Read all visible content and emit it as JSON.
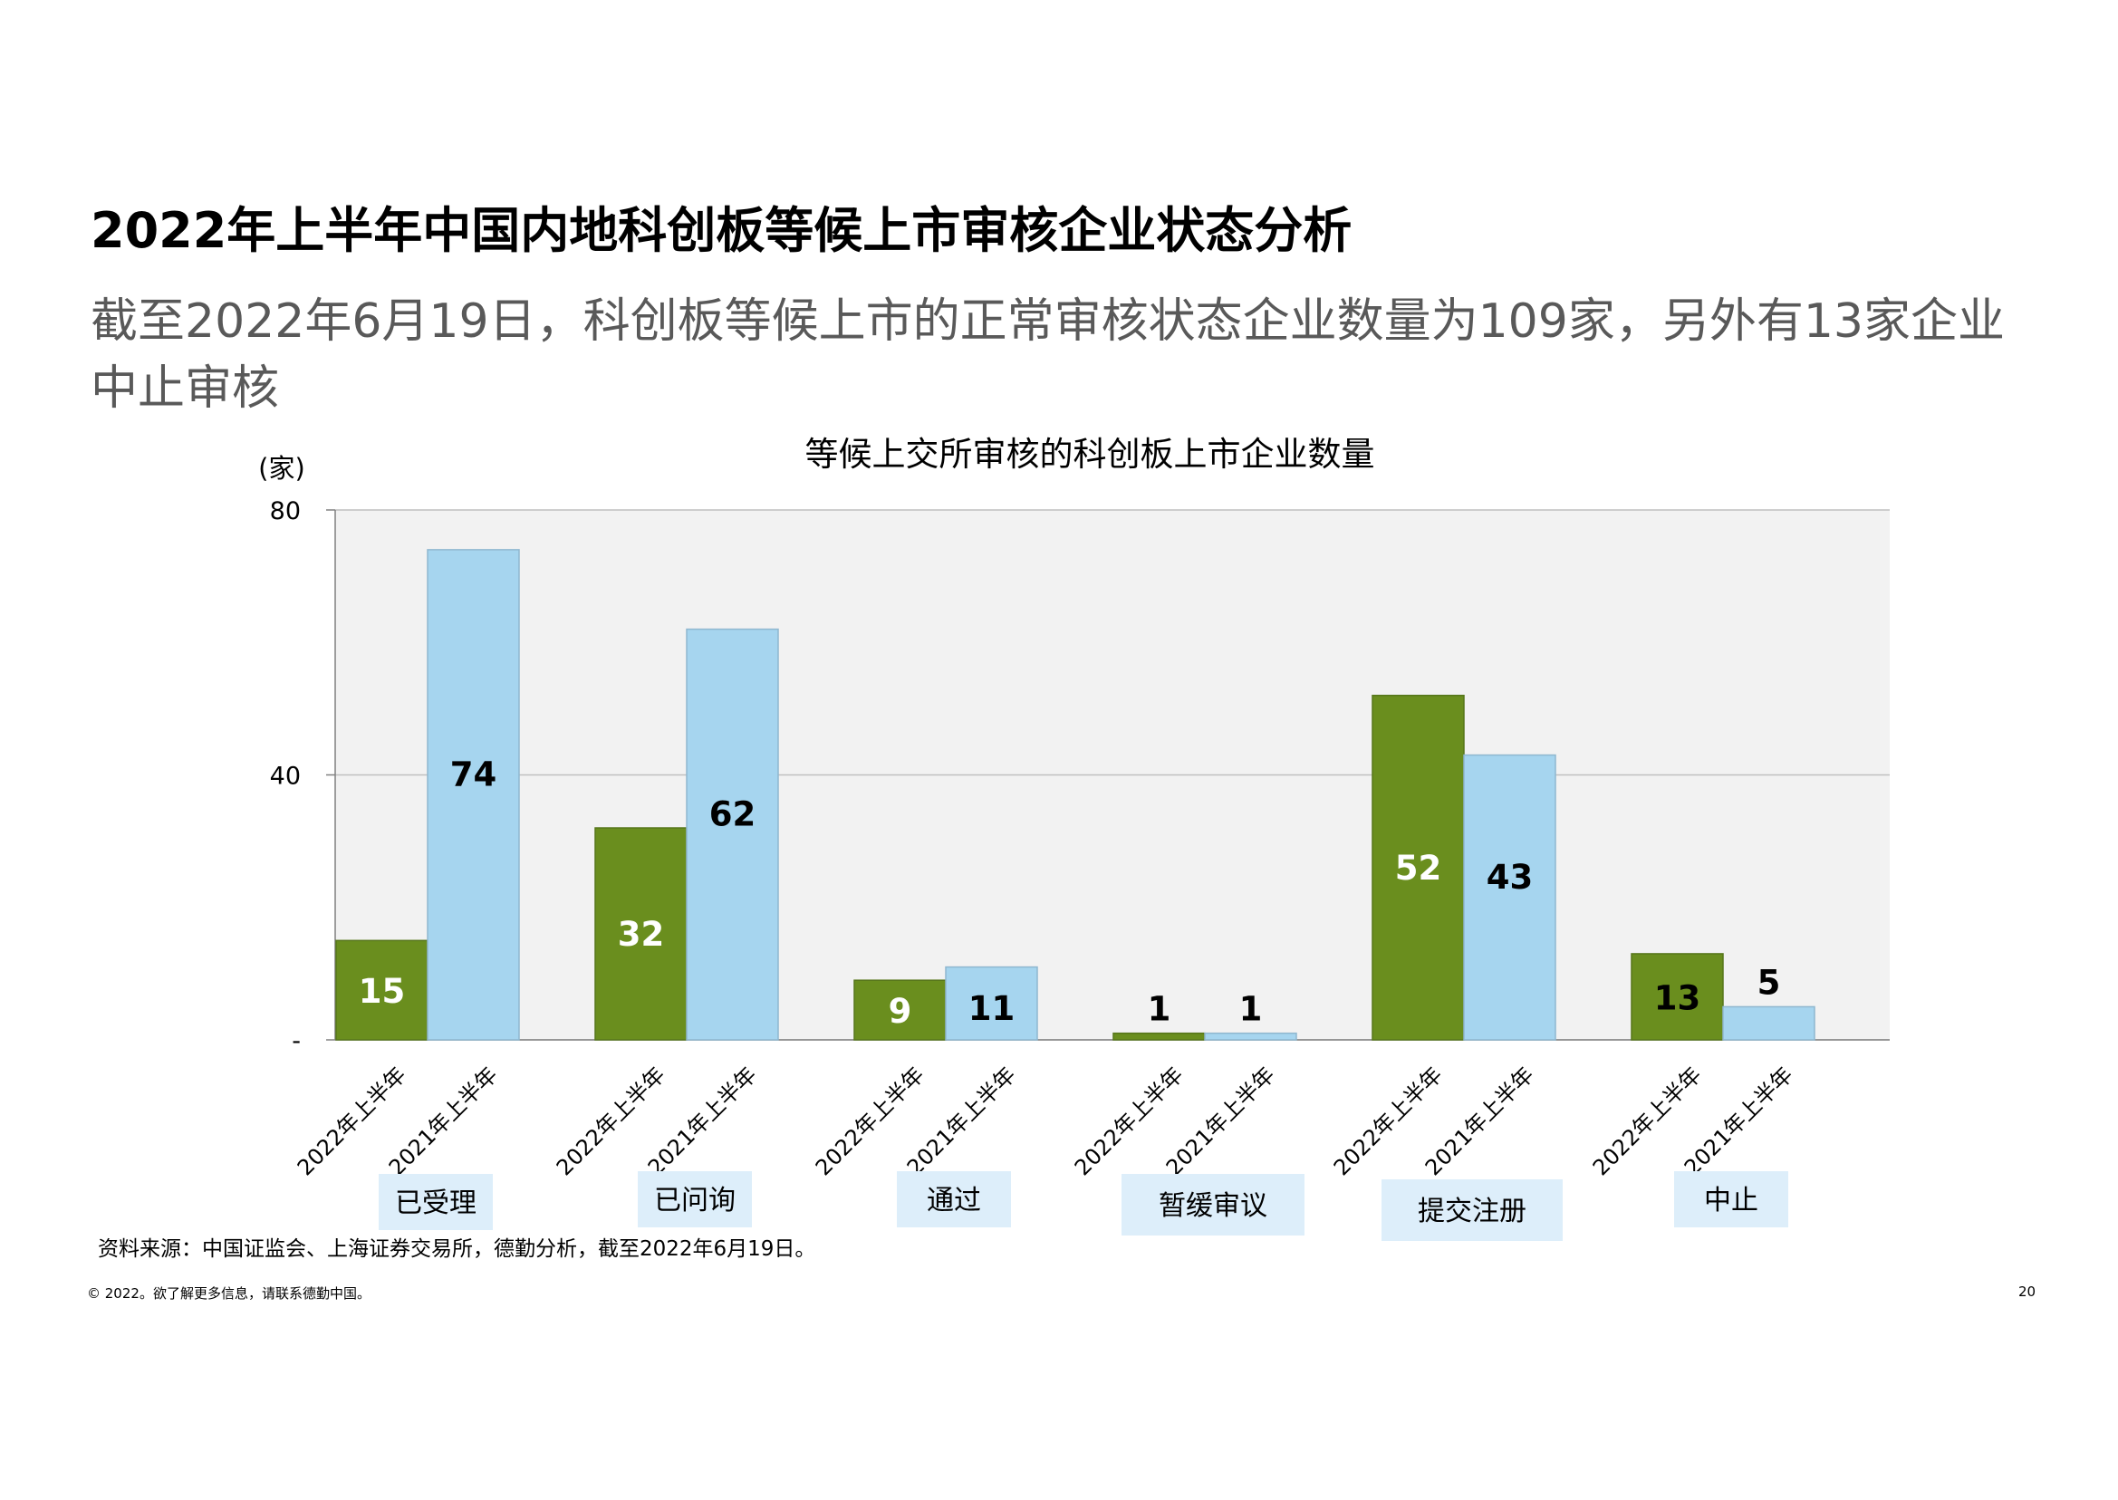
{
  "page": {
    "title": "2022年上半年中国内地科创板等候上市审核企业状态分析",
    "subtitle": "截至2022年6月19日，科创板等候上市的正常审核状态企业数量为109家，另外有13家企业中止审核",
    "source": "资料来源：中国证监会、上海证券交易所，德勤分析，截至2022年6月19日。",
    "copyright": "© 2022。欲了解更多信息，请联系德勤中国。",
    "page_number": "20"
  },
  "colors": {
    "series_2022": "#6a8e1e",
    "series_2021": "#a6d5ef",
    "plot_background": "#f2f2f2",
    "category_box": "#ddeefa",
    "subtitle_text": "#595959"
  },
  "chart_data": {
    "type": "bar",
    "title": "等候上交所审核的科创板上市企业数量",
    "ylabel": "(家)",
    "ylim": [
      0,
      80
    ],
    "yticks": [
      {
        "value": 0,
        "label": "-"
      },
      {
        "value": 40,
        "label": "40"
      },
      {
        "value": 80,
        "label": "80"
      }
    ],
    "grid": true,
    "legend": "none",
    "series": [
      {
        "key": "h1_2022",
        "label": "2022年上半年"
      },
      {
        "key": "h1_2021",
        "label": "2021年上半年"
      }
    ],
    "groups": [
      {
        "category": "已受理",
        "values": [
          15,
          74
        ]
      },
      {
        "category": "已问询",
        "values": [
          32,
          62
        ]
      },
      {
        "category": "通过",
        "values": [
          9,
          11
        ]
      },
      {
        "category": "暂缓审议",
        "values": [
          1,
          1
        ]
      },
      {
        "category": "提交注册",
        "values": [
          52,
          43
        ]
      },
      {
        "category": "中止",
        "values": [
          13,
          5
        ]
      }
    ]
  }
}
